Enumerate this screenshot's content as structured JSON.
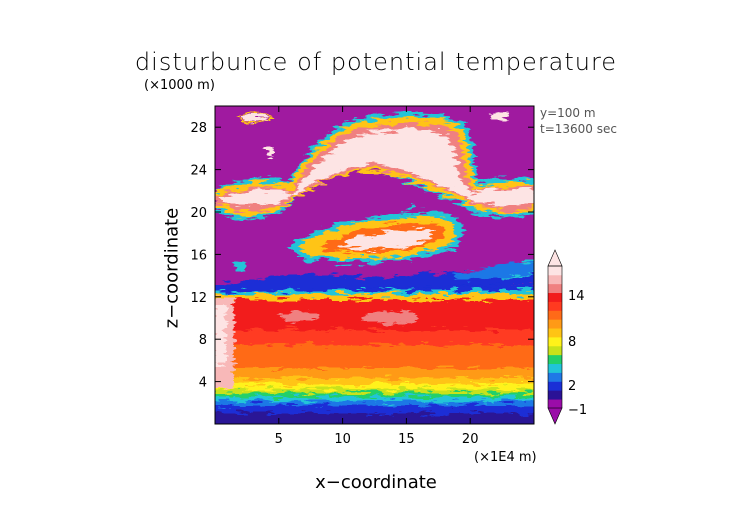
{
  "chart_data": {
    "type": "heatmap",
    "title": "disturbunce of potential temperature",
    "xlabel": "x−coordinate",
    "ylabel": "z−coordinate",
    "x_unit": "(×1E4 m)",
    "y_unit": "(×1000 m)",
    "annotations": [
      "y=100 m",
      "t=13600 sec"
    ],
    "xlim": [
      0,
      25
    ],
    "ylim": [
      0,
      30
    ],
    "x_ticks": [
      5,
      10,
      15,
      20
    ],
    "y_ticks": [
      4,
      8,
      12,
      16,
      20,
      24,
      28
    ],
    "colorbar": {
      "tick_labels": [
        "14",
        "8",
        "2",
        "−1"
      ],
      "colors": [
        "#9a0ca8",
        "#2a1296",
        "#1a2fd6",
        "#1f78e6",
        "#21c4d8",
        "#22d06a",
        "#c8e21a",
        "#fff21a",
        "#ffc414",
        "#ff9a16",
        "#ff6a18",
        "#ff3a20",
        "#f21c1c",
        "#f08080",
        "#f8b8b8",
        "#fde4e4"
      ]
    },
    "background_color": "#a01aa0"
  }
}
